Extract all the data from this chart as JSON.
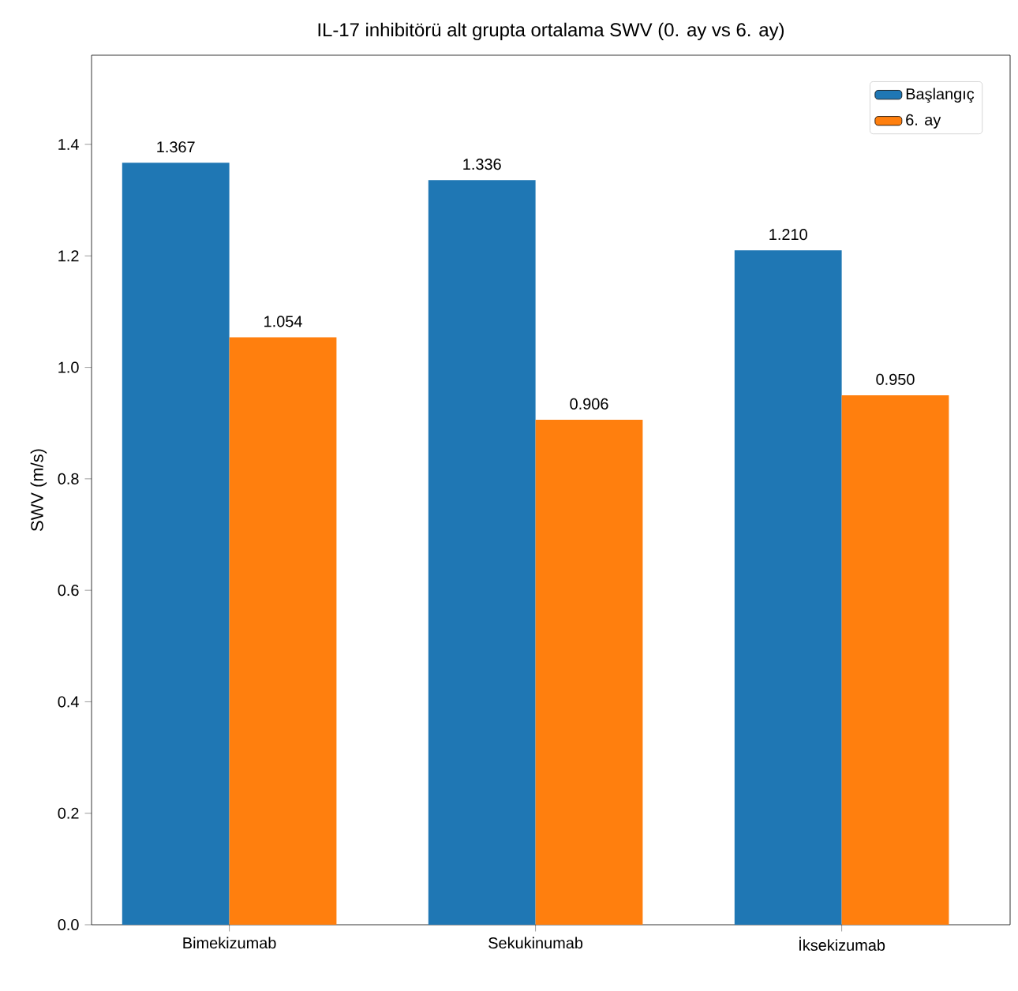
{
  "chart_data": {
    "type": "bar",
    "title": "IL-17 inhibitörü alt grupta ortalama SWV (0. ay vs 6. ay)",
    "ylabel": "SWV (m/s)",
    "categories": [
      "Bimekizumab",
      "Sekukinumab",
      "İksekizumab"
    ],
    "series": [
      {
        "name": "Başlangıç",
        "color": "#1f77b4",
        "values": [
          1.367,
          1.336,
          1.21
        ],
        "value_labels": [
          "1.367",
          "1.336",
          "1.210"
        ]
      },
      {
        "name": "6. ay",
        "color": "#ff7f0e",
        "values": [
          1.054,
          0.906,
          0.95
        ],
        "value_labels": [
          "1.054",
          "0.906",
          "0.950"
        ]
      }
    ],
    "ylim": [
      0,
      1.56
    ],
    "yticks": [
      {
        "value": 0,
        "label": "0.0"
      },
      {
        "value": 0.2,
        "label": "0.2"
      },
      {
        "value": 0.4,
        "label": "0.4"
      },
      {
        "value": 0.6,
        "label": "0.6"
      },
      {
        "value": 0.8,
        "label": "0.8"
      },
      {
        "value": 1.0,
        "label": "1.0"
      },
      {
        "value": 1.2,
        "label": "1.2"
      },
      {
        "value": 1.4,
        "label": "1.4"
      }
    ],
    "legend": "top right",
    "grid": false
  }
}
